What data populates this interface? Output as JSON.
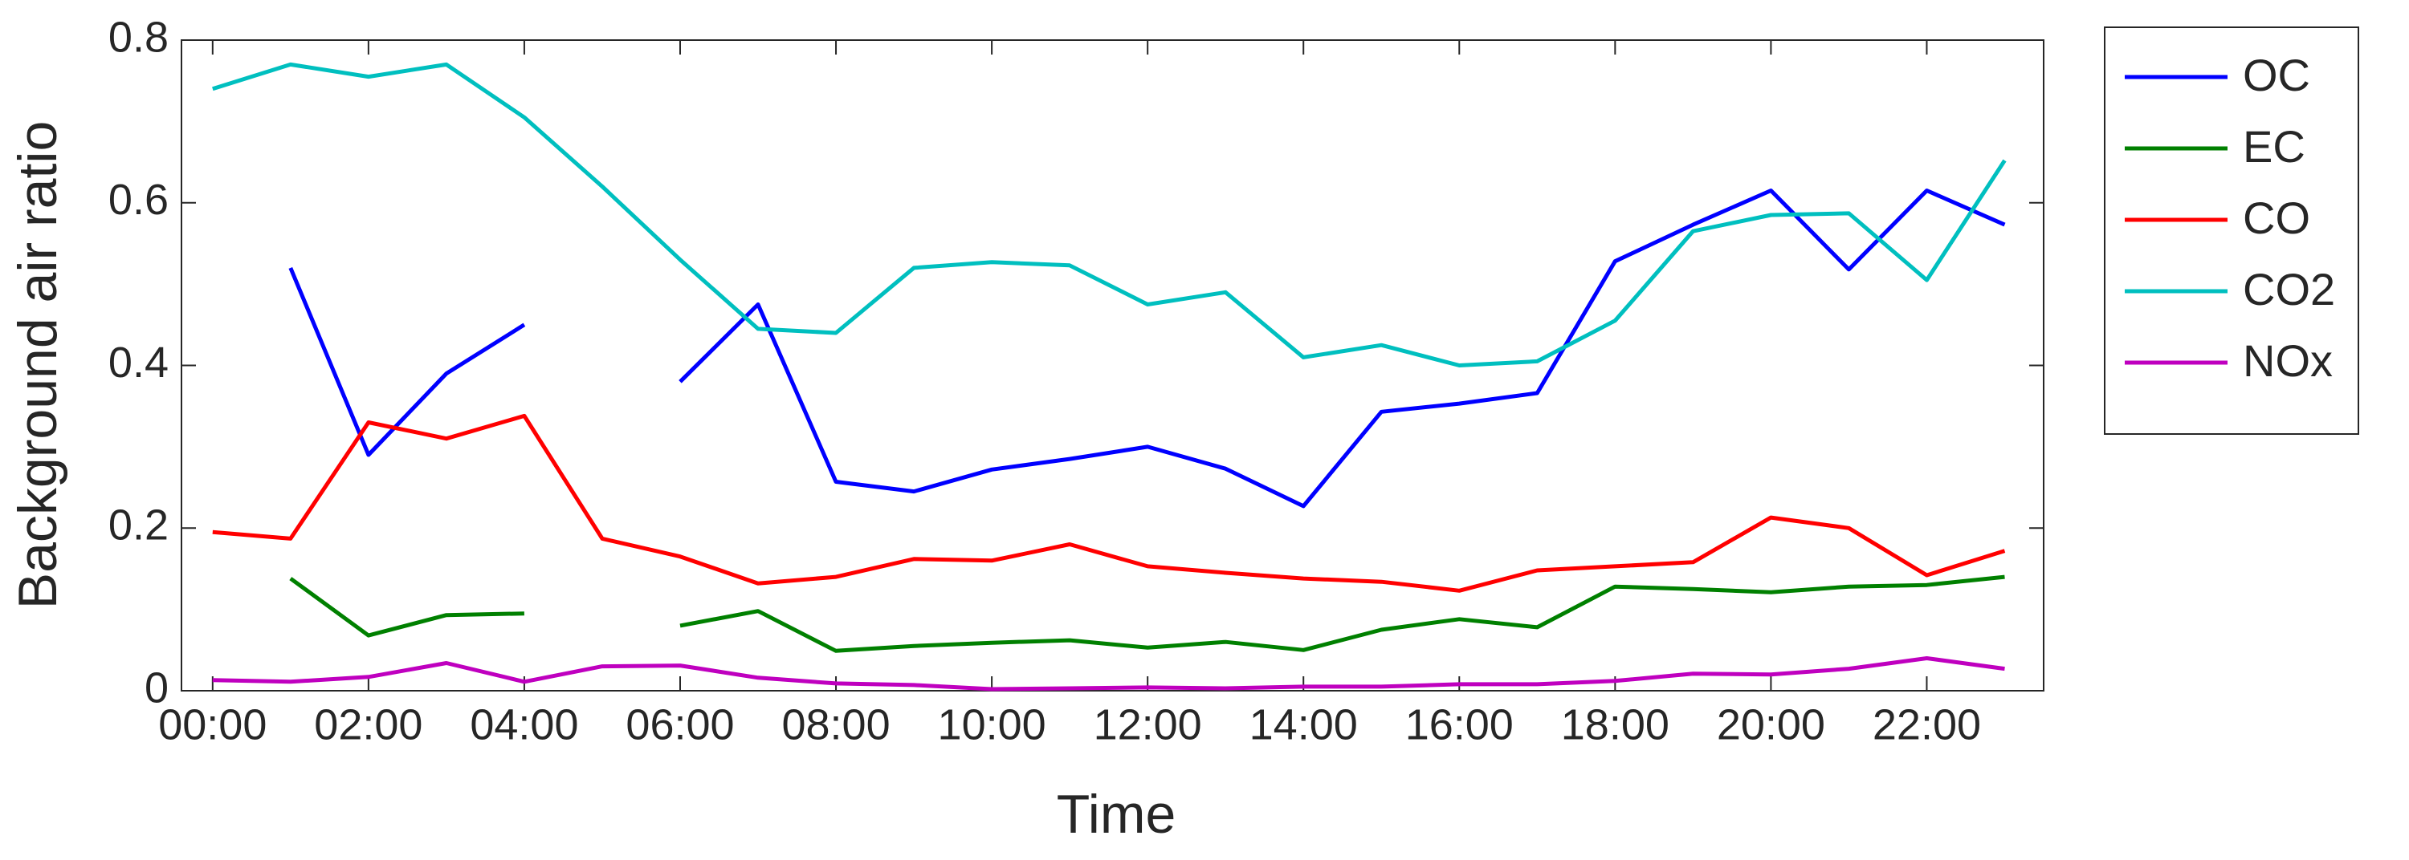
{
  "chart_data": {
    "type": "line",
    "xlabel": "Time",
    "ylabel": "Background air ratio",
    "categories": [
      "00:00",
      null,
      "02:00",
      null,
      "04:00",
      null,
      "06:00",
      null,
      "08:00",
      null,
      "10:00",
      null,
      "12:00",
      null,
      "14:00",
      null,
      "16:00",
      null,
      "18:00",
      null,
      "20:00",
      null,
      "22:00",
      null
    ],
    "series": [
      {
        "name": "OC",
        "color": "#0000ff",
        "values": [
          null,
          0.52,
          0.29,
          0.39,
          0.45,
          null,
          0.38,
          0.475,
          0.257,
          0.245,
          0.272,
          0.285,
          0.3,
          0.273,
          0.227,
          0.343,
          0.353,
          0.366,
          0.528,
          0.573,
          0.615,
          0.518,
          0.615,
          0.573
        ]
      },
      {
        "name": "EC",
        "color": "#008000",
        "values": [
          null,
          0.138,
          0.068,
          0.093,
          0.095,
          null,
          0.08,
          0.098,
          0.049,
          0.055,
          0.059,
          0.062,
          0.053,
          0.06,
          0.05,
          0.075,
          0.088,
          0.078,
          0.128,
          0.125,
          0.121,
          0.128,
          0.13,
          0.14
        ]
      },
      {
        "name": "CO",
        "color": "#ff0000",
        "values": [
          0.195,
          0.187,
          0.33,
          0.31,
          0.338,
          0.187,
          0.165,
          0.132,
          0.14,
          0.162,
          0.16,
          0.18,
          0.153,
          0.145,
          0.138,
          0.134,
          0.123,
          0.148,
          0.153,
          0.158,
          0.213,
          0.2,
          0.142,
          0.172
        ]
      },
      {
        "name": "CO2",
        "color": "#00bfbf",
        "values": [
          0.74,
          0.77,
          0.755,
          0.77,
          0.705,
          0.62,
          0.53,
          0.445,
          0.44,
          0.52,
          0.527,
          0.523,
          0.475,
          0.49,
          0.41,
          0.425,
          0.4,
          0.405,
          0.455,
          0.565,
          0.585,
          0.587,
          0.505,
          0.652
        ]
      },
      {
        "name": "NOx",
        "color": "#bf00bf",
        "values": [
          0.013,
          0.011,
          0.017,
          0.034,
          0.011,
          0.03,
          0.031,
          0.016,
          0.009,
          0.007,
          0.002,
          0.003,
          0.004,
          0.003,
          0.005,
          0.005,
          0.008,
          0.008,
          0.012,
          0.021,
          0.02,
          0.027,
          0.04,
          0.027
        ]
      }
    ],
    "ylim": [
      0,
      0.8
    ],
    "yticks": [
      0,
      0.2,
      0.4,
      0.6,
      0.8
    ],
    "legend": "outside-right"
  }
}
